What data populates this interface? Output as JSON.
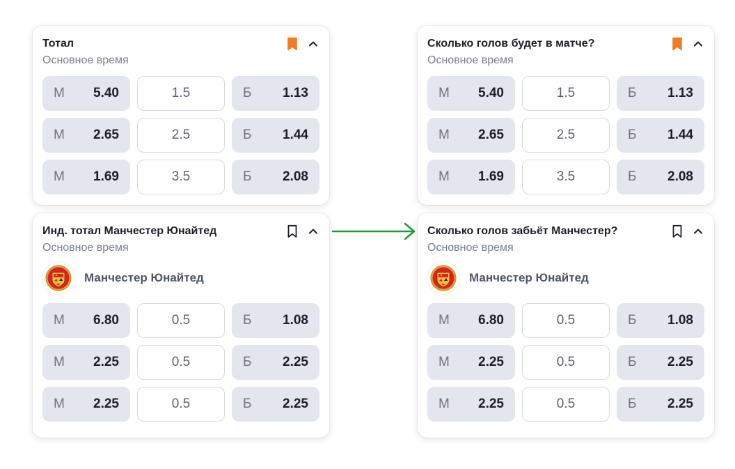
{
  "colors": {
    "bookmark_active": "#f07d22",
    "arrow": "#1e9a36",
    "odd_bg": "#e3e6ec",
    "line_border": "#d7dae1"
  },
  "cards": [
    {
      "title": "Тотал",
      "subtitle": "Основное время",
      "bookmark": "bookmark-filled-icon",
      "rows": [
        {
          "under_letter": "М",
          "under": "5.40",
          "line": "1.5",
          "over_letter": "Б",
          "over": "1.13"
        },
        {
          "under_letter": "М",
          "under": "2.65",
          "line": "2.5",
          "over_letter": "Б",
          "over": "1.44"
        },
        {
          "under_letter": "М",
          "under": "1.69",
          "line": "3.5",
          "over_letter": "Б",
          "over": "2.08"
        }
      ]
    },
    {
      "title": "Сколько голов будет в матче?",
      "subtitle": "Основное время",
      "bookmark": "bookmark-filled-icon",
      "rows": [
        {
          "under_letter": "М",
          "under": "5.40",
          "line": "1.5",
          "over_letter": "Б",
          "over": "1.13"
        },
        {
          "under_letter": "М",
          "under": "2.65",
          "line": "2.5",
          "over_letter": "Б",
          "over": "1.44"
        },
        {
          "under_letter": "М",
          "under": "1.69",
          "line": "3.5",
          "over_letter": "Б",
          "over": "2.08"
        }
      ]
    },
    {
      "title": "Инд. тотал Манчестер Юнайтед",
      "subtitle": "Основное время",
      "bookmark": "bookmark-outline-icon",
      "team": "Манчестер Юнайтед",
      "rows": [
        {
          "under_letter": "М",
          "under": "6.80",
          "line": "0.5",
          "over_letter": "Б",
          "over": "1.08"
        },
        {
          "under_letter": "М",
          "under": "2.25",
          "line": "0.5",
          "over_letter": "Б",
          "over": "2.25"
        },
        {
          "under_letter": "М",
          "under": "2.25",
          "line": "0.5",
          "over_letter": "Б",
          "over": "2.25"
        }
      ]
    },
    {
      "title": "Сколько голов забьёт Манчестер?",
      "subtitle": "Основное время",
      "bookmark": "bookmark-outline-icon",
      "team": "Манчестер Юнайтед",
      "rows": [
        {
          "under_letter": "М",
          "under": "6.80",
          "line": "0.5",
          "over_letter": "Б",
          "over": "1.08"
        },
        {
          "under_letter": "М",
          "under": "2.25",
          "line": "0.5",
          "over_letter": "Б",
          "over": "2.25"
        },
        {
          "under_letter": "М",
          "under": "2.25",
          "line": "0.5",
          "over_letter": "Б",
          "over": "2.25"
        }
      ]
    }
  ]
}
